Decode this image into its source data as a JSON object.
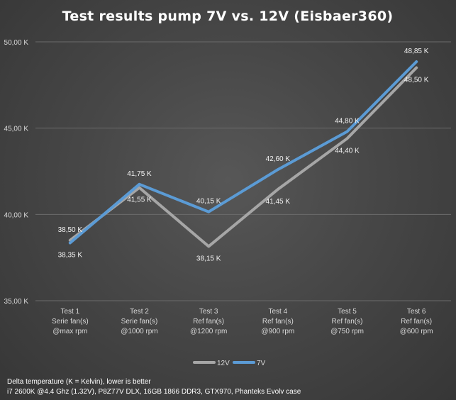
{
  "chart_data": {
    "type": "line",
    "title": "Test results pump 7V vs. 12V (Eisbaer360)",
    "categories": [
      [
        "Test 1",
        "Serie fan(s)",
        "@max rpm"
      ],
      [
        "Test 2",
        "Serie fan(s)",
        "@1000 rpm"
      ],
      [
        "Test 3",
        "Ref fan(s)",
        "@1200 rpm"
      ],
      [
        "Test 4",
        "Ref fan(s)",
        "@900 rpm"
      ],
      [
        "Test 5",
        "Ref fan(s)",
        "@750 rpm"
      ],
      [
        "Test 6",
        "Ref fan(s)",
        "@600 rpm"
      ]
    ],
    "series": [
      {
        "name": "12V",
        "color": "#a6a6a6",
        "values": [
          38.5,
          41.55,
          38.15,
          41.45,
          44.4,
          48.5
        ],
        "labels": [
          "38,50 K",
          "41,55 K",
          "38,15 K",
          "41,45 K",
          "44,40 K",
          "48,50 K"
        ]
      },
      {
        "name": "7V",
        "color": "#5b9bd5",
        "values": [
          38.35,
          41.75,
          40.15,
          42.6,
          44.8,
          48.85
        ],
        "labels": [
          "38,35 K",
          "41,75 K",
          "40,15 K",
          "42,60 K",
          "44,80 K",
          "48,85 K"
        ]
      }
    ],
    "ylim": [
      35,
      50
    ],
    "yticks": [
      35,
      40,
      45,
      50
    ],
    "ytick_labels": [
      "35,00 K",
      "40,00 K",
      "45,00 K",
      "50,00 K"
    ],
    "grid": true,
    "legend_position": "bottom"
  },
  "footnote": {
    "line1": "Delta temperature (K = Kelvin), lower is better",
    "line2": "i7 2600K @4.4 Ghz (1.32V), P8Z77V DLX, 16GB 1866 DDR3, GTX970, Phanteks Evolv case"
  }
}
